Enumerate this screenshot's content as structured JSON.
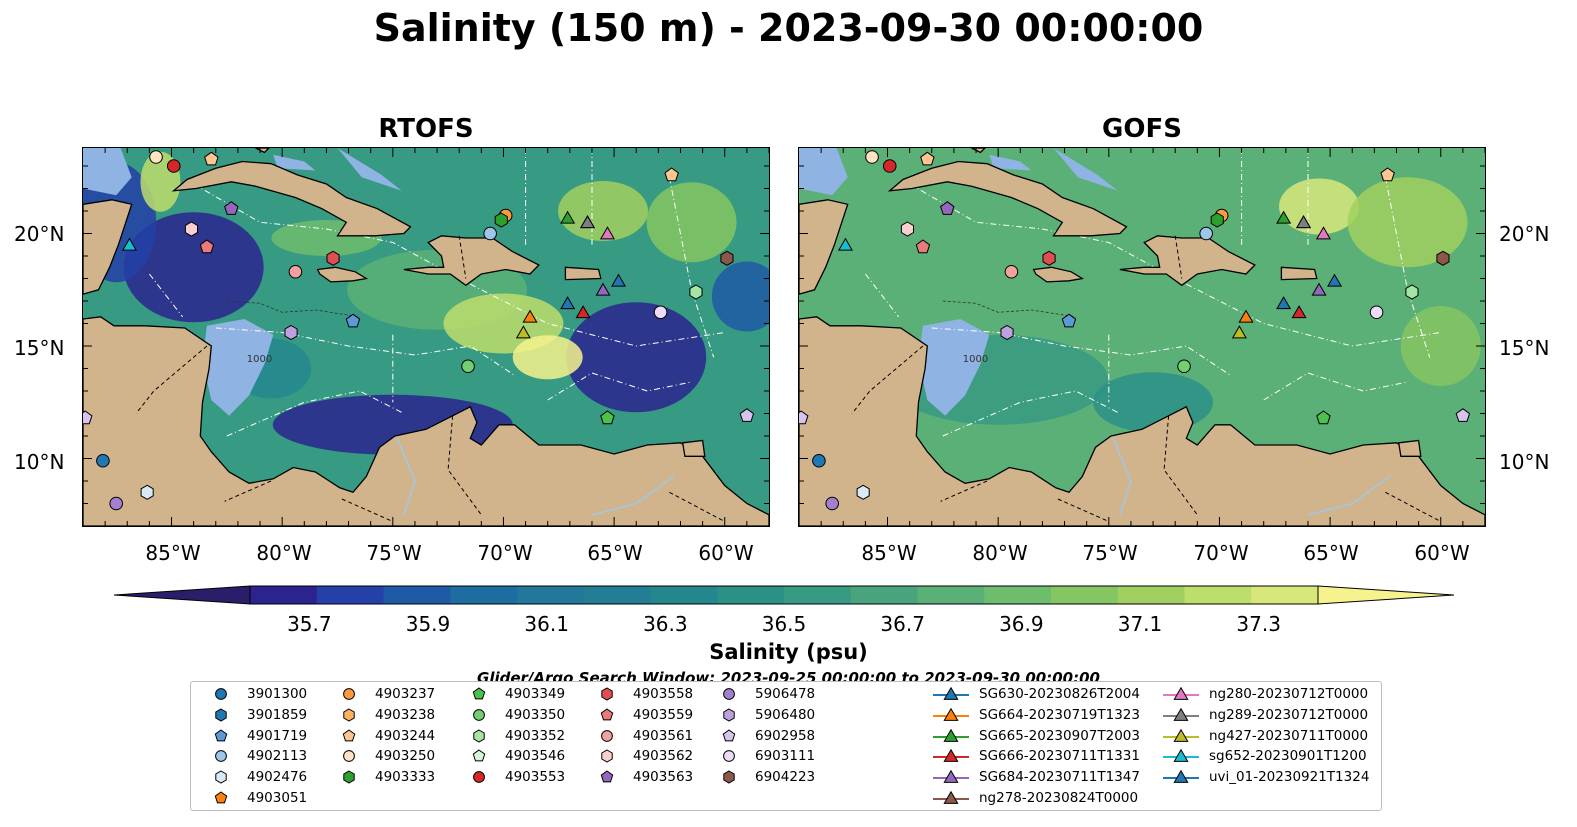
{
  "title": "Salinity (150 m) - 2023-09-30 00:00:00",
  "panels": [
    {
      "title": "RTOFS",
      "scheme": "rtofs"
    },
    {
      "title": "GOFS",
      "scheme": "gofs"
    }
  ],
  "latitude_ticks": [
    "20°N",
    "15°N",
    "10°N"
  ],
  "longitude_ticks": [
    "85°W",
    "80°W",
    "75°W",
    "70°W",
    "65°W",
    "60°W"
  ],
  "colorbar": {
    "label": "Salinity (psu)",
    "ticks": [
      "35.7",
      "35.9",
      "36.1",
      "36.3",
      "36.5",
      "36.7",
      "36.9",
      "37.1",
      "37.3"
    ],
    "range": [
      35.6,
      37.4
    ],
    "extend": "both",
    "colors": [
      "#2a1e6b",
      "#2b248f",
      "#2540a8",
      "#1f5aa6",
      "#1e6da0",
      "#21789a",
      "#237d94",
      "#25878e",
      "#2b9187",
      "#379a82",
      "#49a47d",
      "#5ab077",
      "#6ebd6e",
      "#85c562",
      "#a1d060",
      "#bddd6c",
      "#d8e77b",
      "#f6f28d"
    ]
  },
  "search_window": "Glider/Argo Search Window: 2023-09-25 00:00:00 to 2023-09-30 00:00:00",
  "legend": {
    "items": [
      {
        "label": "3901300",
        "shape": "circle",
        "color": "#1f77b4"
      },
      {
        "label": "3901859",
        "shape": "hexagon",
        "color": "#1f77b4"
      },
      {
        "label": "4901719",
        "shape": "pentagon",
        "color": "#5b9bd5"
      },
      {
        "label": "4902113",
        "shape": "circle",
        "color": "#9fc5e8"
      },
      {
        "label": "4902476",
        "shape": "hexagon",
        "color": "#d9eaf7"
      },
      {
        "label": "4903051",
        "shape": "pentagon",
        "color": "#ff7f0e"
      },
      {
        "label": "4903237",
        "shape": "circle",
        "color": "#ff9a3c"
      },
      {
        "label": "4903238",
        "shape": "hexagon",
        "color": "#ffb061"
      },
      {
        "label": "4903244",
        "shape": "pentagon",
        "color": "#ffc68f"
      },
      {
        "label": "4903250",
        "shape": "circle",
        "color": "#ffe3c4"
      },
      {
        "label": "4903333",
        "shape": "hexagon",
        "color": "#2ca02c"
      },
      {
        "label": "4903349",
        "shape": "pentagon",
        "color": "#4cc24c"
      },
      {
        "label": "4903350",
        "shape": "circle",
        "color": "#72cf72"
      },
      {
        "label": "4903352",
        "shape": "hexagon",
        "color": "#a6e3a6"
      },
      {
        "label": "4903546",
        "shape": "pentagon",
        "color": "#d9f5d9"
      },
      {
        "label": "4903553",
        "shape": "circle",
        "color": "#d62728"
      },
      {
        "label": "4903558",
        "shape": "hexagon",
        "color": "#e04f50"
      },
      {
        "label": "4903559",
        "shape": "pentagon",
        "color": "#ea7a7b"
      },
      {
        "label": "4903561",
        "shape": "circle",
        "color": "#f2a1a1"
      },
      {
        "label": "4903562",
        "shape": "hexagon",
        "color": "#f9cfcf"
      },
      {
        "label": "4903563",
        "shape": "pentagon",
        "color": "#9467bd"
      },
      {
        "label": "5906478",
        "shape": "circle",
        "color": "#a47fd0"
      },
      {
        "label": "5906480",
        "shape": "hexagon",
        "color": "#bea0e0"
      },
      {
        "label": "6902958",
        "shape": "pentagon",
        "color": "#d8c3ef"
      },
      {
        "label": "6903111",
        "shape": "circle",
        "color": "#ecdcf7"
      },
      {
        "label": "6904223",
        "shape": "hexagon",
        "color": "#8c564b"
      },
      {
        "label": "SG630-20230826T2004",
        "shape": "triangle-line",
        "color": "#1f77b4"
      },
      {
        "label": "SG664-20230719T1323",
        "shape": "triangle-line",
        "color": "#ff7f0e"
      },
      {
        "label": "SG665-20230907T2003",
        "shape": "triangle-line",
        "color": "#2ca02c"
      },
      {
        "label": "SG666-20230711T1331",
        "shape": "triangle-line",
        "color": "#d62728"
      },
      {
        "label": "SG684-20230711T1347",
        "shape": "triangle-line",
        "color": "#9467bd"
      },
      {
        "label": "ng278-20230824T0000",
        "shape": "triangle-line",
        "color": "#8c564b"
      },
      {
        "label": "ng280-20230712T0000",
        "shape": "triangle-line",
        "color": "#e377c2"
      },
      {
        "label": "ng289-20230712T0000",
        "shape": "triangle-line",
        "color": "#7f7f7f"
      },
      {
        "label": "ng427-20230711T0000",
        "shape": "triangle-line",
        "color": "#bcbd22"
      },
      {
        "label": "sg652-20230901T1200",
        "shape": "triangle-line",
        "color": "#17becf"
      },
      {
        "label": "uvi_01-20230921T1324",
        "shape": "triangle-line",
        "color": "#1f77b4"
      }
    ]
  },
  "markers": [
    {
      "id": "3901300",
      "lon": -88.1,
      "lat": 9.9
    },
    {
      "id": "4901719",
      "lon": -76.8,
      "lat": 16.1
    },
    {
      "id": "4902113",
      "lon": -70.6,
      "lat": 20.0
    },
    {
      "id": "4902476",
      "lon": -86.1,
      "lat": 8.5
    },
    {
      "id": "4903237",
      "lon": -69.9,
      "lat": 20.8
    },
    {
      "id": "4903244",
      "lon": -83.2,
      "lat": 23.3
    },
    {
      "id": "4903244",
      "lon": -62.4,
      "lat": 22.6
    },
    {
      "id": "4903250",
      "lon": -85.7,
      "lat": 23.4
    },
    {
      "id": "4903333",
      "lon": -70.1,
      "lat": 20.6
    },
    {
      "id": "4903349",
      "lon": -65.3,
      "lat": 11.8
    },
    {
      "id": "4903350",
      "lon": -71.6,
      "lat": 14.1
    },
    {
      "id": "4903352",
      "lon": -61.3,
      "lat": 17.4
    },
    {
      "id": "4903553",
      "lon": -84.9,
      "lat": 23.0
    },
    {
      "id": "4903558",
      "lon": -77.7,
      "lat": 18.9
    },
    {
      "id": "4903559",
      "lon": -83.4,
      "lat": 19.4
    },
    {
      "id": "4903561",
      "lon": -79.4,
      "lat": 18.3
    },
    {
      "id": "4903562",
      "lon": -84.1,
      "lat": 20.2
    },
    {
      "id": "4903563",
      "lon": -82.3,
      "lat": 21.1
    },
    {
      "id": "5906478",
      "lon": -87.5,
      "lat": 8.0
    },
    {
      "id": "5906480",
      "lon": -79.6,
      "lat": 15.6
    },
    {
      "id": "6902958",
      "lon": -59.0,
      "lat": 11.9
    },
    {
      "id": "6902958",
      "lon": -88.9,
      "lat": 11.8
    },
    {
      "id": "6903111",
      "lon": -62.9,
      "lat": 16.5
    },
    {
      "id": "6904223",
      "lon": -59.9,
      "lat": 18.9
    },
    {
      "id": "SG630-20230826T2004",
      "lon": -64.8,
      "lat": 17.9
    },
    {
      "id": "SG664-20230719T1323",
      "lon": -68.8,
      "lat": 16.3
    },
    {
      "id": "SG665-20230907T2003",
      "lon": -67.1,
      "lat": 20.7
    },
    {
      "id": "SG666-20230711T1331",
      "lon": -66.4,
      "lat": 16.5
    },
    {
      "id": "SG684-20230711T1347",
      "lon": -65.5,
      "lat": 17.5
    },
    {
      "id": "ng278-20230824T0000",
      "lon": -66.2,
      "lat": 20.5
    },
    {
      "id": "ng280-20230712T0000",
      "lon": -65.3,
      "lat": 20.0
    },
    {
      "id": "ng289-20230712T0000",
      "lon": -66.2,
      "lat": 20.5
    },
    {
      "id": "ng427-20230711T0000",
      "lon": -69.1,
      "lat": 15.6
    },
    {
      "id": "sg652-20230901T1200",
      "lon": -86.9,
      "lat": 19.5
    },
    {
      "id": "uvi_01-20230921T1324",
      "lon": -67.1,
      "lat": 16.9
    }
  ],
  "map_extent": {
    "lon": [
      -89.0,
      -58.0
    ],
    "lat": [
      7.0,
      23.8
    ]
  },
  "bathymetry_contour_label": "1000"
}
